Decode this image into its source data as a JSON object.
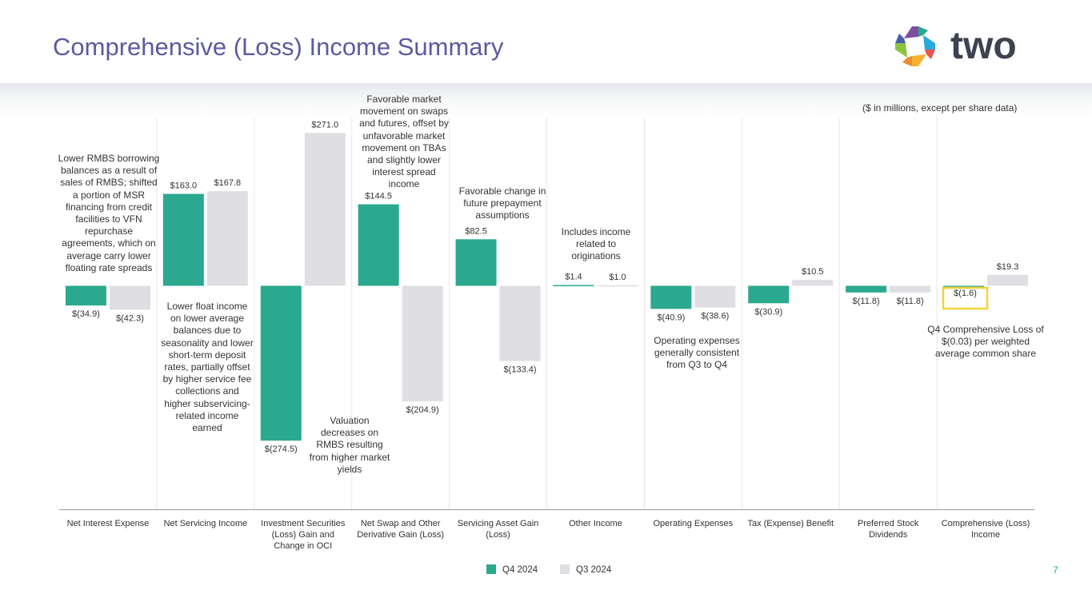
{
  "page": {
    "title": "Comprehensive (Loss) Income Summary",
    "units_note": "($ in millions, except per share data)",
    "page_number": "7",
    "brand_name": "two"
  },
  "colors": {
    "q4": "#2aa98e",
    "q3": "#dfdfe3",
    "title": "#5c5aa0",
    "highlight": "#f2d23a",
    "axis": "#9a9a9a",
    "grid": "#e6e6e6"
  },
  "chart_data": {
    "type": "bar",
    "title": "Comprehensive (Loss) Income Summary",
    "xlabel": "",
    "ylabel": "$ in millions",
    "ylim": [
      -520,
      360
    ],
    "grid": true,
    "legend_position": "bottom-center",
    "categories": [
      [
        "Net Interest Expense"
      ],
      [
        "Net Servicing Income"
      ],
      [
        "Investment Securities",
        "(Loss) Gain and",
        "Change in OCI"
      ],
      [
        "Net Swap and Other",
        "Derivative Gain (Loss)"
      ],
      [
        "Servicing Asset Gain",
        "(Loss)"
      ],
      [
        "Other Income"
      ],
      [
        "Operating Expenses"
      ],
      [
        "Tax (Expense) Benefit"
      ],
      [
        "Preferred Stock",
        "Dividends"
      ],
      [
        "Comprehensive (Loss)",
        "Income"
      ]
    ],
    "series": [
      {
        "name": "Q4 2024",
        "values": [
          -34.9,
          163.0,
          -274.5,
          144.5,
          82.5,
          1.4,
          -40.9,
          -30.9,
          -11.8,
          -1.6
        ],
        "labels": [
          "$(34.9)",
          "$163.0",
          "$(274.5)",
          "$144.5",
          "$82.5",
          "$1.4",
          "$(40.9)",
          "$(30.9)",
          "$(11.8)",
          "$(1.6)"
        ]
      },
      {
        "name": "Q3 2024",
        "values": [
          -42.3,
          167.8,
          271.0,
          -204.9,
          -133.4,
          1.0,
          -38.6,
          10.5,
          -11.8,
          19.3
        ],
        "labels": [
          "$(42.3)",
          "$167.8",
          "$271.0",
          "$(204.9)",
          "$(133.4)",
          "$1.0",
          "$(38.6)",
          "$10.5",
          "$(11.8)",
          "$19.3"
        ]
      }
    ],
    "highlighted": "Q4 2024 Comprehensive (Loss) Income",
    "annotations": [
      [
        "Lower RMBS borrowing",
        "balances as a result of",
        "sales of RMBS; shifted",
        "a portion of MSR",
        "financing from credit",
        "facilities to VFN",
        "repurchase",
        "agreements, which on",
        "average carry lower",
        "floating rate spreads"
      ],
      [
        "Lower float income",
        "on lower average",
        "balances due to",
        "seasonality and lower",
        "short-term deposit",
        "rates, partially offset",
        "by higher service fee",
        "collections and",
        "higher subservicing-",
        "related income",
        "earned"
      ],
      [
        "Favorable market",
        "movement on swaps",
        "and futures, offset by",
        "unfavorable market",
        "movement on TBAs",
        "and slightly lower",
        "interest spread",
        "income"
      ],
      [
        "Valuation",
        "decreases on",
        "RMBS resulting",
        "from higher market",
        "yields"
      ],
      [
        "Favorable change in",
        "future prepayment",
        "assumptions"
      ],
      [
        "Includes income",
        "related to",
        "originations"
      ],
      [
        "Operating expenses",
        "generally consistent",
        "from Q3 to Q4"
      ],
      [
        "Q4 Comprehensive Loss of",
        "$(0.03) per weighted",
        "average common share"
      ]
    ]
  }
}
